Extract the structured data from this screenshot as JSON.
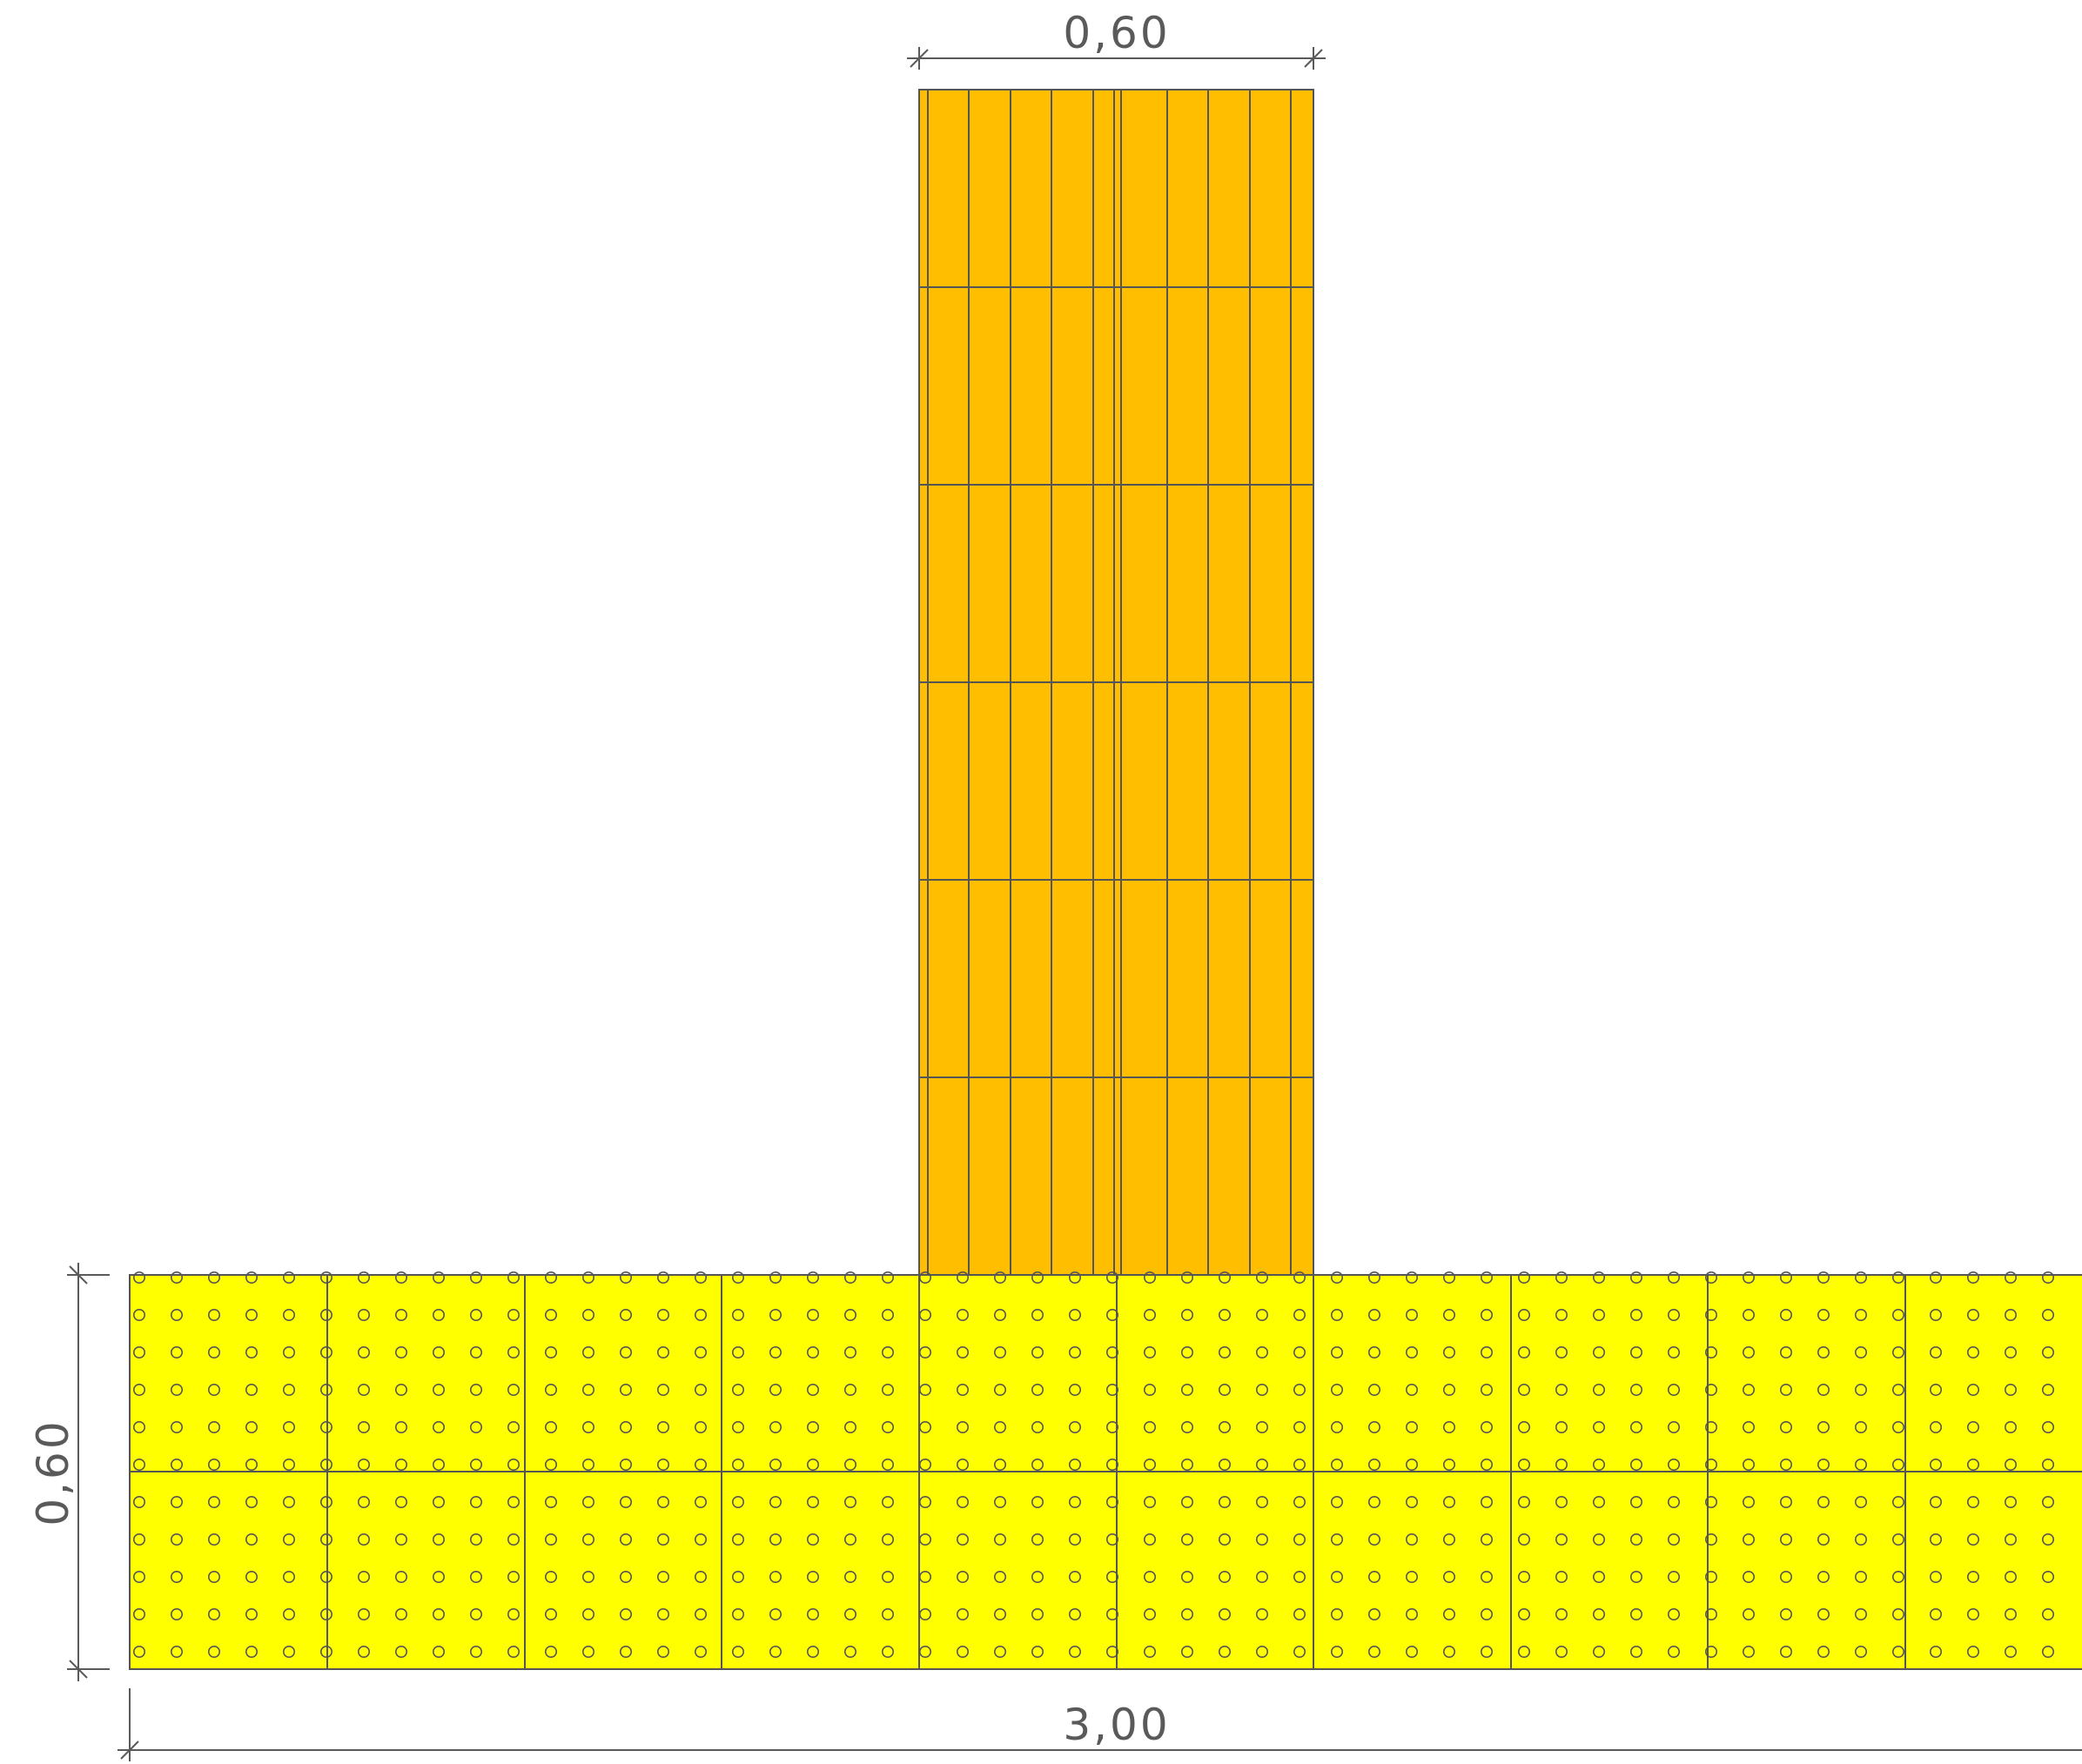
{
  "diagram": {
    "column_width_dimension": "0,60",
    "footing_height_dimension": "0,60",
    "footing_width_dimension": "3,00"
  },
  "colors": {
    "column_fill": "#FFBE00",
    "footing_fill": "#FFFF00",
    "line": "#555555",
    "dimension_line": "#5a5a5a",
    "background": "#ffffff"
  }
}
